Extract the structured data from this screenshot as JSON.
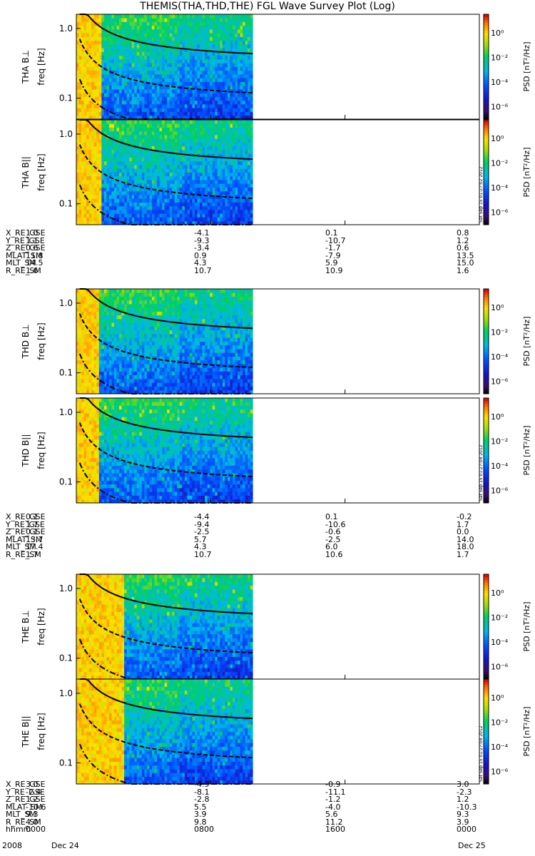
{
  "chart_data": {
    "type": "heatmap",
    "title": "THEMIS(THA,THD,THE) FGL Wave Survey Plot (Log)",
    "panels": [
      {
        "probe": "THA",
        "ylabel_top": "THA B⊥",
        "ylabel_unit": "freq [Hz]",
        "cb_label": "PSD [nT²/Hz]",
        "stamp": ""
      },
      {
        "probe": "THA",
        "ylabel_top": "THA B||",
        "ylabel_unit": "freq [Hz]",
        "cb_label": "PSD [nT²/Hz]",
        "stamp": "Sat Sep 15 01:27:02 2012"
      },
      {
        "probe": "THD",
        "ylabel_top": "THD B⊥",
        "ylabel_unit": "freq [Hz]",
        "cb_label": "PSD [nT²/Hz]",
        "stamp": ""
      },
      {
        "probe": "THD",
        "ylabel_top": "THD B||",
        "ylabel_unit": "freq [Hz]",
        "cb_label": "PSD [nT²/Hz]",
        "stamp": "Sat Sep 15 01:27:04 2012"
      },
      {
        "probe": "THE",
        "ylabel_top": "THE B⊥",
        "ylabel_unit": "freq [Hz]",
        "cb_label": "PSD [nT²/Hz]",
        "stamp": ""
      },
      {
        "probe": "THE",
        "ylabel_top": "THE B||",
        "ylabel_unit": "freq [Hz]",
        "cb_label": "PSD [nT²/Hz]",
        "stamp": "Sat Sep 15 01:27:04 2012"
      }
    ],
    "y_ticks": [
      "1.0",
      "0.1"
    ],
    "y_tick_values": [
      1.0,
      0.1
    ],
    "ylim": [
      0.05,
      1.6
    ],
    "ylog": true,
    "x_range_hours": [
      0,
      24
    ],
    "data_end_hour": 10.5,
    "colorbar": {
      "ticks": [
        "10⁰",
        "10⁻²",
        "10⁻⁴",
        "10⁻⁶"
      ],
      "tick_exponents": [
        0,
        -2,
        -4,
        -6
      ],
      "range_exponents": [
        -7,
        1.5
      ]
    },
    "ephemeris": [
      {
        "rows": [
          {
            "label": "X_RE_GSE",
            "values": [
              "1.0",
              "-4.1",
              "0.1",
              "0.8"
            ]
          },
          {
            "label": "Y_RE_GSE",
            "values": [
              "1.1",
              "-9.3",
              "-10.7",
              "1.2"
            ]
          },
          {
            "label": "Z_RE_GSE",
            "values": [
              "0.6",
              "-3.4",
              "-1.7",
              "0.6"
            ]
          },
          {
            "label": "MLAT_SM",
            "values": [
              "11.8",
              "0.9",
              "-7.9",
              "13.5"
            ]
          },
          {
            "label": "MLT_SM",
            "values": [
              "14.5",
              "4.3",
              "5.9",
              "15.0"
            ]
          },
          {
            "label": "R_RE_SM",
            "values": [
              "1.6",
              "10.7",
              "10.9",
              "1.6"
            ]
          }
        ]
      },
      {
        "rows": [
          {
            "label": "X_RE_GSE",
            "values": [
              "0.1",
              "-4.4",
              "0.1",
              "-0.2"
            ]
          },
          {
            "label": "Y_RE_GSE",
            "values": [
              "1.7",
              "-9.4",
              "-10.6",
              "1.7"
            ]
          },
          {
            "label": "Z_RE_GSE",
            "values": [
              "0.1",
              "-2.5",
              "-0.6",
              "0.0"
            ]
          },
          {
            "label": "MLAT_SM",
            "values": [
              "13.7",
              "5.7",
              "-2.5",
              "14.0"
            ]
          },
          {
            "label": "MLT_SM",
            "values": [
              "17.4",
              "4.3",
              "6.0",
              "18.0"
            ]
          },
          {
            "label": "R_RE_SM",
            "values": [
              "1.7",
              "10.7",
              "10.6",
              "1.7"
            ]
          }
        ]
      },
      {
        "rows": [
          {
            "label": "X_RE_GSE",
            "values": [
              "3.0",
              "-4.9",
              "-0.9",
              "3.0"
            ]
          },
          {
            "label": "Y_RE_GSE",
            "values": [
              "-2.4",
              "-8.1",
              "-11.1",
              "-2.3"
            ]
          },
          {
            "label": "Z_RE_GSE",
            "values": [
              "1.2",
              "-2.8",
              "-1.2",
              "1.2"
            ]
          },
          {
            "label": "MLAT_SM",
            "values": [
              "-10.6",
              "5.5",
              "-4.0",
              "-10.3"
            ]
          },
          {
            "label": "MLT_SM",
            "values": [
              "9.3",
              "3.9",
              "5.6",
              "9.3"
            ]
          },
          {
            "label": "R_RE_SM",
            "values": [
              "4.0",
              "9.8",
              "11.2",
              "3.9"
            ]
          },
          {
            "label": "hhmm",
            "values": [
              "0000",
              "0800",
              "1600",
              "0000"
            ]
          }
        ]
      }
    ],
    "date_row": {
      "year": "2008",
      "start": "Dec 24",
      "end": "Dec 25"
    }
  }
}
